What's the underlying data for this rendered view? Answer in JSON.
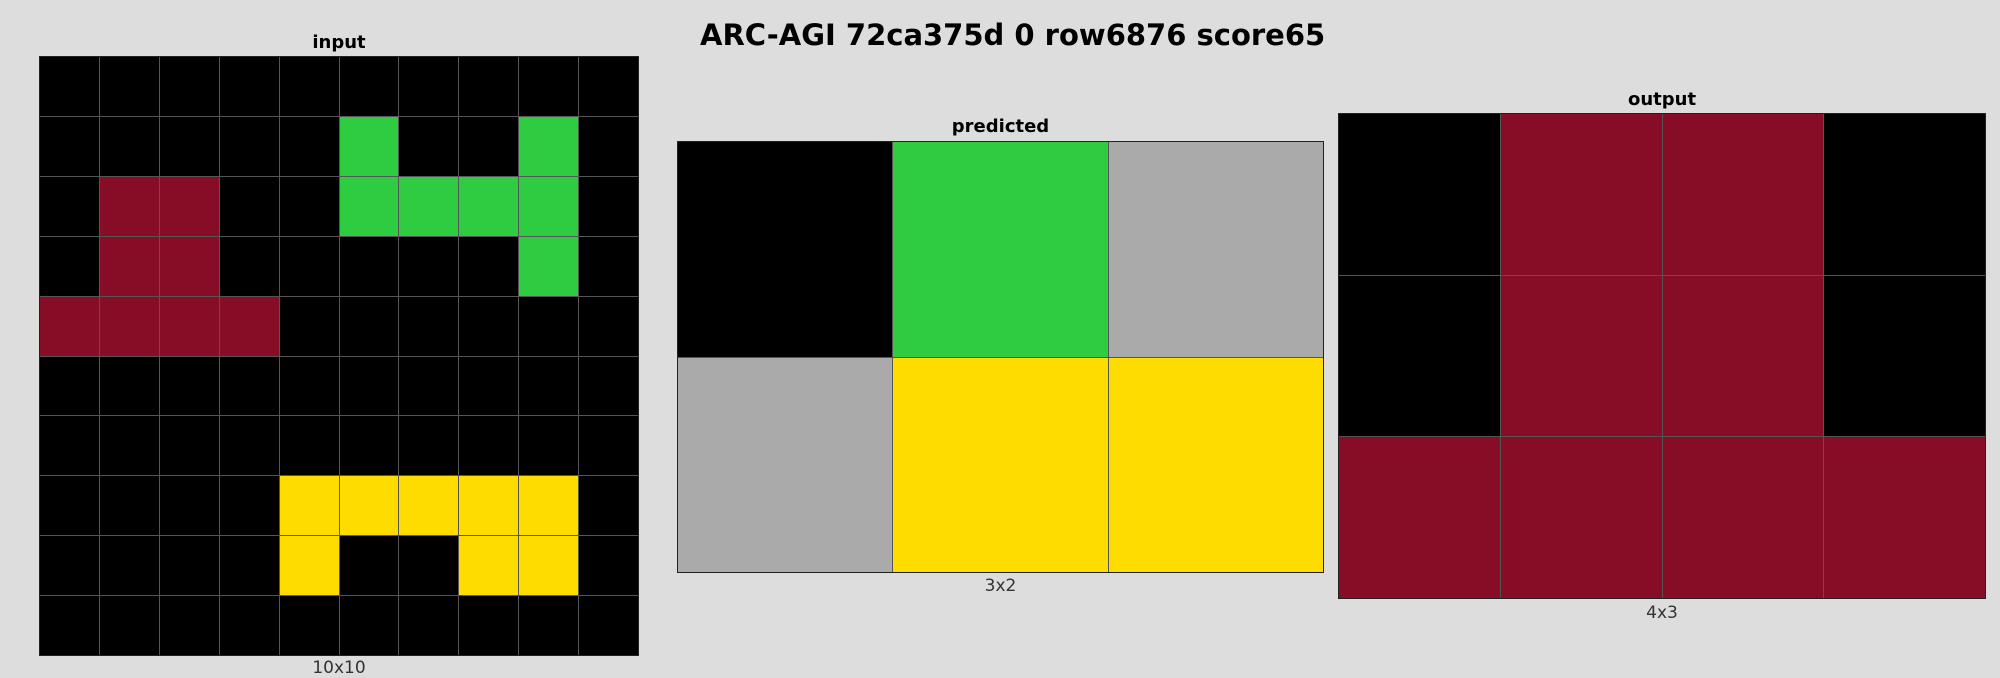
{
  "title": "ARC-AGI 72ca375d 0 row6876 score65",
  "palette": {
    "0": "#000000",
    "2": "#2ecc40",
    "4": "#ffdc00",
    "5": "#aaaaaa",
    "8": "#870c25"
  },
  "panels": {
    "input": {
      "label": "input",
      "dims": "10x10",
      "grid": [
        [
          0,
          0,
          0,
          0,
          0,
          0,
          0,
          0,
          0,
          0
        ],
        [
          0,
          0,
          0,
          0,
          0,
          2,
          0,
          0,
          2,
          0
        ],
        [
          0,
          8,
          8,
          0,
          0,
          2,
          2,
          2,
          2,
          0
        ],
        [
          0,
          8,
          8,
          0,
          0,
          0,
          0,
          0,
          2,
          0
        ],
        [
          8,
          8,
          8,
          8,
          0,
          0,
          0,
          0,
          0,
          0
        ],
        [
          0,
          0,
          0,
          0,
          0,
          0,
          0,
          0,
          0,
          0
        ],
        [
          0,
          0,
          0,
          0,
          0,
          0,
          0,
          0,
          0,
          0
        ],
        [
          0,
          0,
          0,
          0,
          4,
          4,
          4,
          4,
          4,
          0
        ],
        [
          0,
          0,
          0,
          0,
          4,
          0,
          0,
          4,
          4,
          0
        ],
        [
          0,
          0,
          0,
          0,
          0,
          0,
          0,
          0,
          0,
          0
        ]
      ]
    },
    "predicted": {
      "label": "predicted",
      "dims": "3x2",
      "grid": [
        [
          0,
          2,
          5
        ],
        [
          5,
          4,
          4
        ]
      ]
    },
    "output": {
      "label": "output",
      "dims": "4x3",
      "grid": [
        [
          0,
          8,
          8,
          0
        ],
        [
          0,
          8,
          8,
          0
        ],
        [
          8,
          8,
          8,
          8
        ]
      ]
    }
  }
}
